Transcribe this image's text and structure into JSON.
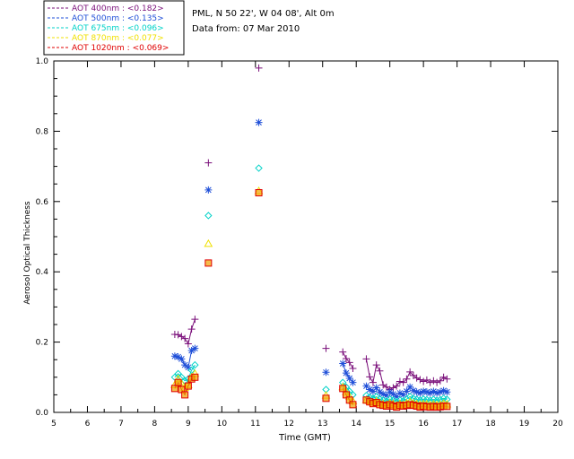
{
  "chart_data": {
    "type": "line",
    "title": "PML, N 50 22', W 04 08', Alt 0m",
    "subtitle": "Data from: 07 Mar 2010",
    "xlabel": "Time (GMT)",
    "ylabel": "Aerosol Optical Thickness",
    "xlim": [
      5,
      20
    ],
    "ylim": [
      0,
      1.0
    ],
    "xticks": [
      "5",
      "6",
      "7",
      "8",
      "9",
      "10",
      "11",
      "12",
      "13",
      "14",
      "15",
      "16",
      "17",
      "18",
      "19",
      "20"
    ],
    "yticks": [
      "0.0",
      "0.2",
      "0.4",
      "0.6",
      "0.8",
      "1.0"
    ],
    "grid": false,
    "legend_position": "top-left, above plot",
    "series": [
      {
        "name": "AOT  400nm : <0.182>",
        "color": "#7a0f7a",
        "marker": "plus",
        "x": [
          8.6,
          8.7,
          8.8,
          8.9,
          9.0,
          9.1,
          9.2,
          9.6,
          11.1,
          13.1,
          13.6,
          13.7,
          13.8,
          13.9,
          14.3,
          14.4,
          14.5,
          14.6,
          14.7,
          14.8,
          14.9,
          15.0,
          15.1,
          15.2,
          15.3,
          15.4,
          15.5,
          15.6,
          15.7,
          15.8,
          15.9,
          16.0,
          16.1,
          16.2,
          16.3,
          16.4,
          16.5,
          16.6,
          16.7
        ],
        "y": [
          0.222,
          0.221,
          0.216,
          0.21,
          0.195,
          0.237,
          0.265,
          0.71,
          0.98,
          0.182,
          0.172,
          0.153,
          0.142,
          0.125,
          0.152,
          0.101,
          0.085,
          0.135,
          0.118,
          0.078,
          0.072,
          0.065,
          0.07,
          0.075,
          0.088,
          0.085,
          0.095,
          0.115,
          0.105,
          0.098,
          0.093,
          0.088,
          0.092,
          0.085,
          0.09,
          0.085,
          0.09,
          0.1,
          0.095
        ]
      },
      {
        "name": "AOT  500nm : <0.135>",
        "color": "#1f4fd8",
        "marker": "asterisk",
        "x": [
          8.6,
          8.7,
          8.8,
          8.9,
          9.0,
          9.1,
          9.2,
          9.6,
          11.1,
          13.1,
          13.6,
          13.7,
          13.8,
          13.9,
          14.3,
          14.4,
          14.5,
          14.6,
          14.7,
          14.8,
          14.9,
          15.0,
          15.1,
          15.2,
          15.3,
          15.4,
          15.5,
          15.6,
          15.7,
          15.8,
          15.9,
          16.0,
          16.1,
          16.2,
          16.3,
          16.4,
          16.5,
          16.6,
          16.7
        ],
        "y": [
          0.16,
          0.158,
          0.152,
          0.135,
          0.128,
          0.176,
          0.182,
          0.633,
          0.825,
          0.114,
          0.139,
          0.112,
          0.097,
          0.085,
          0.075,
          0.065,
          0.06,
          0.07,
          0.058,
          0.052,
          0.048,
          0.058,
          0.052,
          0.045,
          0.055,
          0.05,
          0.06,
          0.072,
          0.062,
          0.058,
          0.055,
          0.06,
          0.058,
          0.055,
          0.06,
          0.055,
          0.058,
          0.062,
          0.058
        ]
      },
      {
        "name": "AOT  675nm : <0.096>",
        "color": "#00d2c8",
        "marker": "diamond",
        "x": [
          8.6,
          8.7,
          8.8,
          8.9,
          9.0,
          9.1,
          9.2,
          9.6,
          11.1,
          13.1,
          13.6,
          13.7,
          13.8,
          13.9,
          14.3,
          14.4,
          14.5,
          14.6,
          14.7,
          14.8,
          14.9,
          15.0,
          15.1,
          15.2,
          15.3,
          15.4,
          15.5,
          15.6,
          15.7,
          15.8,
          15.9,
          16.0,
          16.1,
          16.2,
          16.3,
          16.4,
          16.5,
          16.6,
          16.7
        ],
        "y": [
          0.1,
          0.11,
          0.1,
          0.09,
          0.095,
          0.12,
          0.135,
          0.56,
          0.695,
          0.065,
          0.085,
          0.072,
          0.06,
          0.05,
          0.048,
          0.043,
          0.04,
          0.045,
          0.038,
          0.035,
          0.032,
          0.038,
          0.035,
          0.03,
          0.035,
          0.033,
          0.038,
          0.045,
          0.04,
          0.037,
          0.035,
          0.038,
          0.036,
          0.034,
          0.037,
          0.034,
          0.036,
          0.04,
          0.037
        ]
      },
      {
        "name": "AOT  870nm : <0.077>",
        "color": "#f0e000",
        "marker": "triangle",
        "x": [
          8.6,
          8.7,
          8.8,
          8.9,
          9.0,
          9.1,
          9.2,
          9.6,
          11.1,
          13.1,
          13.6,
          13.7,
          13.8,
          13.9,
          14.3,
          14.4,
          14.5,
          14.6,
          14.7,
          14.8,
          14.9,
          15.0,
          15.1,
          15.2,
          15.3,
          15.4,
          15.5,
          15.6,
          15.7,
          15.8,
          15.9,
          16.0,
          16.1,
          16.2,
          16.3,
          16.4,
          16.5,
          16.6,
          16.7
        ],
        "y": [
          0.078,
          0.095,
          0.082,
          0.07,
          0.078,
          0.1,
          0.11,
          0.48,
          0.63,
          0.048,
          0.072,
          0.058,
          0.045,
          0.032,
          0.035,
          0.032,
          0.028,
          0.032,
          0.026,
          0.024,
          0.022,
          0.026,
          0.024,
          0.02,
          0.024,
          0.022,
          0.026,
          0.03,
          0.026,
          0.024,
          0.022,
          0.024,
          0.023,
          0.021,
          0.023,
          0.021,
          0.022,
          0.025,
          0.023
        ]
      },
      {
        "name": "AOT 1020nm : <0.069>",
        "color": "#e00000",
        "marker": "square",
        "x": [
          8.6,
          8.7,
          8.8,
          8.9,
          9.0,
          9.1,
          9.2,
          9.6,
          11.1,
          13.1,
          13.6,
          13.7,
          13.8,
          13.9,
          14.3,
          14.4,
          14.5,
          14.6,
          14.7,
          14.8,
          14.9,
          15.0,
          15.1,
          15.2,
          15.3,
          15.4,
          15.5,
          15.6,
          15.7,
          15.8,
          15.9,
          16.0,
          16.1,
          16.2,
          16.3,
          16.4,
          16.5,
          16.6,
          16.7
        ],
        "y": [
          0.068,
          0.085,
          0.065,
          0.05,
          0.075,
          0.095,
          0.1,
          0.425,
          0.625,
          0.04,
          0.068,
          0.05,
          0.035,
          0.022,
          0.035,
          0.03,
          0.025,
          0.028,
          0.022,
          0.02,
          0.018,
          0.022,
          0.018,
          0.015,
          0.02,
          0.018,
          0.02,
          0.022,
          0.02,
          0.018,
          0.015,
          0.018,
          0.016,
          0.015,
          0.017,
          0.015,
          0.016,
          0.018,
          0.017
        ]
      }
    ]
  }
}
